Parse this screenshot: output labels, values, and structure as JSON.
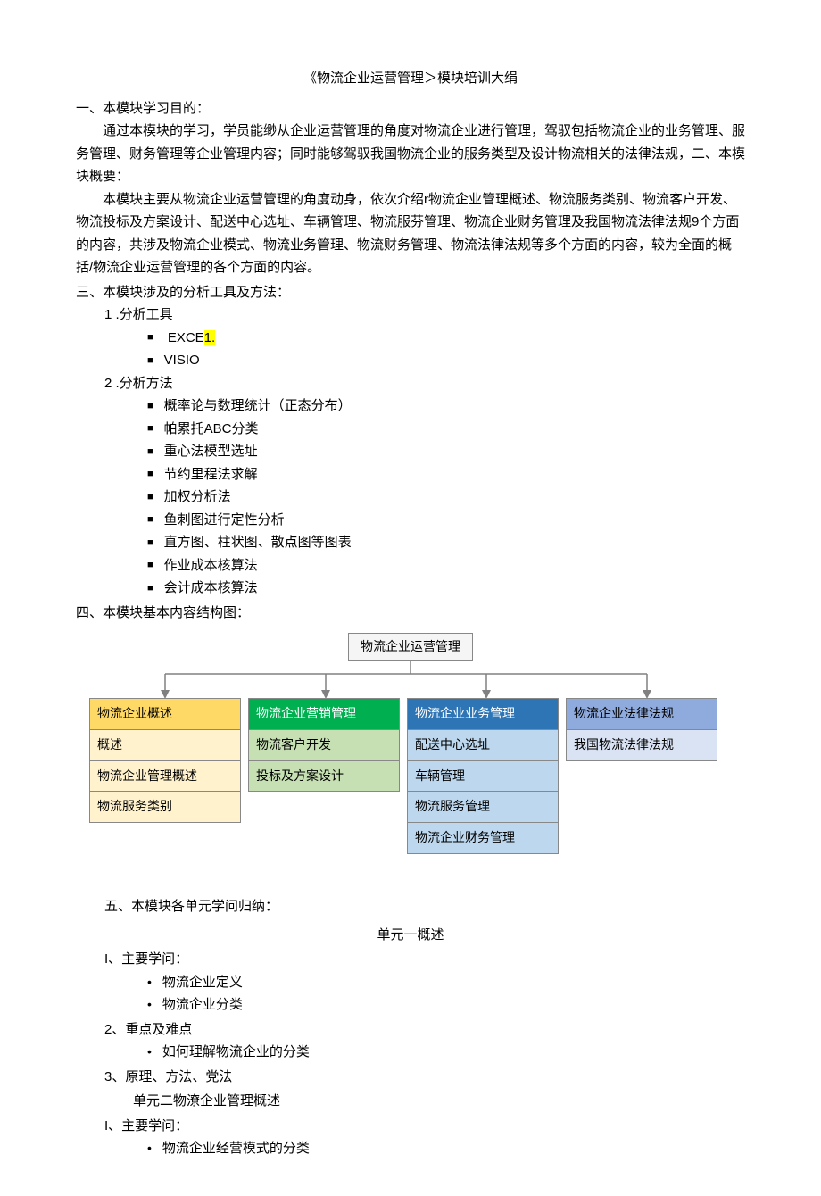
{
  "title": "《物流企业运营管理＞模块培训大绢",
  "sec1_heading": "一、本模块学习目的：",
  "sec1_p1": "通过本模块的学习，学员能缈从企业运营管理的角度对物流企业进行管理，驾驭包括物流企业的业务管理、服务管理、财务管理等企业管理内容；同时能够驾驭我国物流企业的服务类型及设计物流相关的法律法规，二、本模块概要：",
  "sec1_p2": "本模块主要从物流企业运营管理的角度动身，依次介绍r物流企业管理概述、物流服务类别、物流客户开发、物流投标及方案设计、配送中心选址、车辆管理、物流服芬管理、物流企业财务管理及我国物流法律法规9个方面的内容，共涉及物流企业模式、物流业务管理、物流财务管理、物流法律法规等多个方面的内容，较为全面的概括/物流企业运营管理的各个方面的内容。",
  "sec3_heading": "三、本模块涉及的分析工具及方法：",
  "tools_heading": "1 .分析工具",
  "tool1_a": "EXCE",
  "tool1_b": "1.",
  "tool2": "VISIO",
  "methods_heading": "2  .分析方法",
  "methods": [
    "概率论与数理统计（正态分布）",
    "帕累托ABC分类",
    "重心法模型选址",
    "节约里程法求解",
    "加权分析法",
    "鱼刺图进行定性分析",
    "直方图、柱状图、散点图等图表",
    "作业成本核算法",
    "会计成本核算法"
  ],
  "sec4_heading": "四、本模块基本内容结构图：",
  "diagram": {
    "root": "物流企业运营管理",
    "columns": [
      {
        "header_bg": "#ffd966",
        "body_bg": "#fff2cc",
        "cells": [
          "物流企业概述",
          "概述",
          "物流企业管理概述",
          "物流服务类别"
        ]
      },
      {
        "header_bg": "#00b050",
        "body_bg": "#c6e0b4",
        "header_color": "#ffffff",
        "cells": [
          "物流企业营销管理",
          "物流客户开发",
          "投标及方案设计"
        ]
      },
      {
        "header_bg": "#2e75b6",
        "body_bg": "#bdd7ee",
        "header_color": "#ffffff",
        "cells": [
          "物流企业业务管理",
          "配送中心选址",
          "车辆管理",
          "物流服务管理",
          "物流企业财务管理"
        ]
      },
      {
        "header_bg": "#8faadc",
        "body_bg": "#dae3f3",
        "cells": [
          "物流企业法律法规",
          "我国物流法律法规"
        ]
      }
    ],
    "connector_color": "#808080",
    "arrow_color": "#808080"
  },
  "sec5_heading": "五、本模块各单元学问归纳：",
  "unit1_title": "单元一概述",
  "u1_h1": "I、主要学问：",
  "u1_items1": [
    "物流企业定义",
    "物流企业分类"
  ],
  "u1_h2": "2、重点及难点",
  "u1_items2": [
    "如何理解物流企业的分类"
  ],
  "u1_h3": "3、原理、方法、党法",
  "unit2_title": "单元二物潦企业管理概述",
  "u2_h1": "I、主要学问：",
  "u2_items1": [
    "物流企业经营模式的分类"
  ]
}
